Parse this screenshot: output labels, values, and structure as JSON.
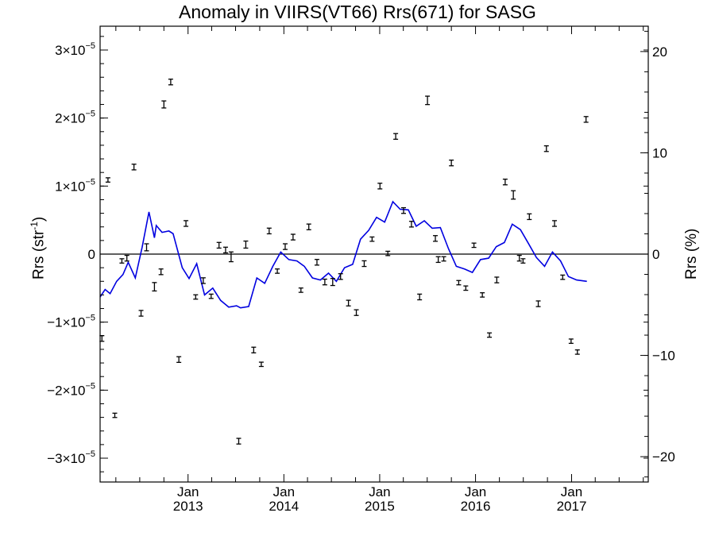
{
  "chart_data": {
    "type": "scatter",
    "title": "Anomaly in VIIRS(VT66) Rrs(671) for SASG",
    "ylabel_left_base": "Rrs (str",
    "ylabel_left_sup": "-1",
    "ylabel_left_end": ")",
    "ylabel_right": "Rrs (%)",
    "x_range": [
      "2012-02-01",
      "2017-10-20"
    ],
    "y_left_range": [
      -3.35e-05,
      3.35e-05
    ],
    "y_right_range": [
      -22.5,
      22.5
    ],
    "y_left_ticks": [
      {
        "value": 3e-05,
        "mantissa": "3",
        "times": "×10",
        "exp": "−5"
      },
      {
        "value": 2e-05,
        "mantissa": "2",
        "times": "×10",
        "exp": "−5"
      },
      {
        "value": 1e-05,
        "mantissa": "1",
        "times": "×10",
        "exp": "−5"
      },
      {
        "value": 0,
        "mantissa": "0",
        "times": "",
        "exp": ""
      },
      {
        "value": -1e-05,
        "mantissa": "−1",
        "times": "×10",
        "exp": "−5"
      },
      {
        "value": -2e-05,
        "mantissa": "−2",
        "times": "×10",
        "exp": "−5"
      },
      {
        "value": -3e-05,
        "mantissa": "−3",
        "times": "×10",
        "exp": "−5"
      }
    ],
    "y_right_ticks": [
      {
        "value": 20,
        "label": "20"
      },
      {
        "value": 10,
        "label": "10"
      },
      {
        "value": 0,
        "label": "0"
      },
      {
        "value": -10,
        "label": "−10"
      },
      {
        "value": -20,
        "label": "−20"
      }
    ],
    "x_ticks": [
      {
        "date": "2013-01-01",
        "month": "Jan",
        "year": "2013"
      },
      {
        "date": "2014-01-01",
        "month": "Jan",
        "year": "2014"
      },
      {
        "date": "2015-01-01",
        "month": "Jan",
        "year": "2015"
      },
      {
        "date": "2016-01-01",
        "month": "Jan",
        "year": "2016"
      },
      {
        "date": "2017-01-01",
        "month": "Jan",
        "year": "2017"
      }
    ],
    "zero_line": 0,
    "series": [
      {
        "kind": "points_with_error_bars",
        "color": "#000000",
        "points": [
          {
            "x": "2012-02-08",
            "y": -1.24e-05,
            "err": 3e-07
          },
          {
            "x": "2012-03-02",
            "y": 1.09e-05,
            "err": 2e-07
          },
          {
            "x": "2012-03-28",
            "y": -2.37e-05,
            "err": 2e-07
          },
          {
            "x": "2012-04-24",
            "y": -1e-06,
            "err": 2e-07
          },
          {
            "x": "2012-05-13",
            "y": -6e-07,
            "err": 3e-07
          },
          {
            "x": "2012-06-09",
            "y": 1.28e-05,
            "err": 3e-07
          },
          {
            "x": "2012-07-06",
            "y": -8.7e-06,
            "err": 3e-07
          },
          {
            "x": "2012-07-27",
            "y": 1e-06,
            "err": 4e-07
          },
          {
            "x": "2012-08-26",
            "y": -4.8e-06,
            "err": 5e-07
          },
          {
            "x": "2012-09-20",
            "y": -2.6e-06,
            "err": 3e-07
          },
          {
            "x": "2012-10-01",
            "y": 2.2e-05,
            "err": 4e-07
          },
          {
            "x": "2012-10-27",
            "y": 2.53e-05,
            "err": 3e-07
          },
          {
            "x": "2012-11-27",
            "y": -1.55e-05,
            "err": 3e-07
          },
          {
            "x": "2012-12-24",
            "y": 4.5e-06,
            "err": 3e-07
          },
          {
            "x": "2013-01-30",
            "y": -6.3e-06,
            "err": 2e-07
          },
          {
            "x": "2013-02-28",
            "y": -3.9e-06,
            "err": 3e-07
          },
          {
            "x": "2013-03-30",
            "y": -6.2e-06,
            "err": 2e-07
          },
          {
            "x": "2013-04-29",
            "y": 1.3e-06,
            "err": 3e-07
          },
          {
            "x": "2013-05-24",
            "y": 6e-07,
            "err": 3e-07
          },
          {
            "x": "2013-06-14",
            "y": -4e-07,
            "err": 6e-07
          },
          {
            "x": "2013-07-13",
            "y": -2.75e-05,
            "err": 3e-07
          },
          {
            "x": "2013-08-09",
            "y": 1.4e-06,
            "err": 4e-07
          },
          {
            "x": "2013-09-08",
            "y": -1.41e-05,
            "err": 3e-07
          },
          {
            "x": "2013-10-07",
            "y": -1.62e-05,
            "err": 2e-07
          },
          {
            "x": "2013-11-06",
            "y": 3.4e-06,
            "err": 3e-07
          },
          {
            "x": "2013-12-07",
            "y": -2.5e-06,
            "err": 2e-07
          },
          {
            "x": "2014-01-06",
            "y": 1.1e-06,
            "err": 3e-07
          },
          {
            "x": "2014-02-05",
            "y": 2.5e-06,
            "err": 3e-07
          },
          {
            "x": "2014-03-07",
            "y": -5.3e-06,
            "err": 2e-07
          },
          {
            "x": "2014-04-06",
            "y": 4e-06,
            "err": 3e-07
          },
          {
            "x": "2014-05-07",
            "y": -1.2e-06,
            "err": 3e-07
          },
          {
            "x": "2014-06-06",
            "y": -4.1e-06,
            "err": 3e-07
          },
          {
            "x": "2014-07-06",
            "y": -4.1e-06,
            "err": 4e-07
          },
          {
            "x": "2014-08-05",
            "y": -3.3e-06,
            "err": 3e-07
          },
          {
            "x": "2014-09-04",
            "y": -7.2e-06,
            "err": 3e-07
          },
          {
            "x": "2014-10-04",
            "y": -8.6e-06,
            "err": 3e-07
          },
          {
            "x": "2014-11-03",
            "y": -1.4e-06,
            "err": 3e-07
          },
          {
            "x": "2014-12-03",
            "y": 2.2e-06,
            "err": 2e-07
          },
          {
            "x": "2015-01-02",
            "y": 1e-05,
            "err": 3e-07
          },
          {
            "x": "2015-02-01",
            "y": 1e-07,
            "err": 2e-07
          },
          {
            "x": "2015-03-03",
            "y": 1.73e-05,
            "err": 3e-07
          },
          {
            "x": "2015-04-02",
            "y": 6.4e-06,
            "err": 3e-07
          },
          {
            "x": "2015-05-02",
            "y": 4.4e-06,
            "err": 3e-07
          },
          {
            "x": "2015-06-02",
            "y": -6.3e-06,
            "err": 3e-07
          },
          {
            "x": "2015-07-02",
            "y": 2.26e-05,
            "err": 5e-07
          },
          {
            "x": "2015-08-01",
            "y": 2.3e-06,
            "err": 3e-07
          },
          {
            "x": "2015-08-12",
            "y": -8e-07,
            "err": 3e-07
          },
          {
            "x": "2015-09-02",
            "y": -7e-07,
            "err": 2e-07
          },
          {
            "x": "2015-10-01",
            "y": 1.34e-05,
            "err": 3e-07
          },
          {
            "x": "2015-10-29",
            "y": -4.2e-06,
            "err": 2e-07
          },
          {
            "x": "2015-11-25",
            "y": -5e-06,
            "err": 2e-07
          },
          {
            "x": "2015-12-26",
            "y": 1.3e-06,
            "err": 2e-07
          },
          {
            "x": "2016-01-27",
            "y": -6e-06,
            "err": 2e-07
          },
          {
            "x": "2016-02-23",
            "y": -1.19e-05,
            "err": 2e-07
          },
          {
            "x": "2016-03-22",
            "y": -3.8e-06,
            "err": 3e-07
          },
          {
            "x": "2016-04-23",
            "y": 1.06e-05,
            "err": 3e-07
          },
          {
            "x": "2016-05-24",
            "y": 8.7e-06,
            "err": 5e-07
          },
          {
            "x": "2016-06-16",
            "y": -6e-07,
            "err": 3e-07
          },
          {
            "x": "2016-06-30",
            "y": -1e-06,
            "err": 2e-07
          },
          {
            "x": "2016-07-24",
            "y": 5.5e-06,
            "err": 3e-07
          },
          {
            "x": "2016-08-27",
            "y": -7.3e-06,
            "err": 3e-07
          },
          {
            "x": "2016-09-27",
            "y": 1.55e-05,
            "err": 3e-07
          },
          {
            "x": "2016-10-28",
            "y": 4.5e-06,
            "err": 3e-07
          },
          {
            "x": "2016-11-28",
            "y": -3.4e-06,
            "err": 2e-07
          },
          {
            "x": "2016-12-30",
            "y": -1.28e-05,
            "err": 2e-07
          },
          {
            "x": "2017-01-23",
            "y": -1.44e-05,
            "err": 2e-07
          },
          {
            "x": "2017-02-25",
            "y": 1.98e-05,
            "err": 3e-07
          }
        ]
      },
      {
        "kind": "line",
        "color": "#0000e0",
        "points": [
          {
            "x": "2012-02-01",
            "y": -6.3e-06
          },
          {
            "x": "2012-02-20",
            "y": -5.2e-06
          },
          {
            "x": "2012-03-10",
            "y": -5.8e-06
          },
          {
            "x": "2012-04-04",
            "y": -4e-06
          },
          {
            "x": "2012-04-28",
            "y": -3e-06
          },
          {
            "x": "2012-05-18",
            "y": -1.2e-06
          },
          {
            "x": "2012-06-14",
            "y": -3.5e-06
          },
          {
            "x": "2012-07-10",
            "y": 1e-06
          },
          {
            "x": "2012-08-05",
            "y": 6.2e-06
          },
          {
            "x": "2012-08-26",
            "y": 2.4e-06
          },
          {
            "x": "2012-09-02",
            "y": 4.2e-06
          },
          {
            "x": "2012-09-24",
            "y": 3.2e-06
          },
          {
            "x": "2012-10-20",
            "y": 3.4e-06
          },
          {
            "x": "2012-11-05",
            "y": 3e-06
          },
          {
            "x": "2012-12-10",
            "y": -2e-06
          },
          {
            "x": "2013-01-05",
            "y": -3.6e-06
          },
          {
            "x": "2013-02-03",
            "y": -1.4e-06
          },
          {
            "x": "2013-03-05",
            "y": -6e-06
          },
          {
            "x": "2013-04-05",
            "y": -5e-06
          },
          {
            "x": "2013-05-05",
            "y": -6.8e-06
          },
          {
            "x": "2013-06-05",
            "y": -7.8e-06
          },
          {
            "x": "2013-07-05",
            "y": -7.6e-06
          },
          {
            "x": "2013-07-20",
            "y": -7.9e-06
          },
          {
            "x": "2013-08-20",
            "y": -7.7e-06
          },
          {
            "x": "2013-09-20",
            "y": -3.5e-06
          },
          {
            "x": "2013-10-20",
            "y": -4.3e-06
          },
          {
            "x": "2013-11-20",
            "y": -1.8e-06
          },
          {
            "x": "2013-12-20",
            "y": 3e-07
          },
          {
            "x": "2014-01-20",
            "y": -8e-07
          },
          {
            "x": "2014-02-20",
            "y": -1e-06
          },
          {
            "x": "2014-03-20",
            "y": -1.8e-06
          },
          {
            "x": "2014-04-20",
            "y": -3.5e-06
          },
          {
            "x": "2014-05-20",
            "y": -3.8e-06
          },
          {
            "x": "2014-06-20",
            "y": -2.8e-06
          },
          {
            "x": "2014-07-20",
            "y": -4e-06
          },
          {
            "x": "2014-08-20",
            "y": -2e-06
          },
          {
            "x": "2014-09-20",
            "y": -1.5e-06
          },
          {
            "x": "2014-10-20",
            "y": 2.2e-06
          },
          {
            "x": "2014-11-20",
            "y": 3.5e-06
          },
          {
            "x": "2014-12-20",
            "y": 5.4e-06
          },
          {
            "x": "2015-01-20",
            "y": 4.7e-06
          },
          {
            "x": "2015-02-20",
            "y": 7.7e-06
          },
          {
            "x": "2015-03-20",
            "y": 6.6e-06
          },
          {
            "x": "2015-04-20",
            "y": 6.5e-06
          },
          {
            "x": "2015-05-20",
            "y": 4.1e-06
          },
          {
            "x": "2015-06-20",
            "y": 4.9e-06
          },
          {
            "x": "2015-07-20",
            "y": 3.8e-06
          },
          {
            "x": "2015-08-20",
            "y": 3.9e-06
          },
          {
            "x": "2015-09-20",
            "y": 8e-07
          },
          {
            "x": "2015-10-20",
            "y": -1.8e-06
          },
          {
            "x": "2015-11-20",
            "y": -2.2e-06
          },
          {
            "x": "2015-12-20",
            "y": -2.7e-06
          },
          {
            "x": "2016-01-20",
            "y": -8e-07
          },
          {
            "x": "2016-02-20",
            "y": -6e-07
          },
          {
            "x": "2016-03-20",
            "y": 1.1e-06
          },
          {
            "x": "2016-04-20",
            "y": 1.7e-06
          },
          {
            "x": "2016-05-20",
            "y": 4.4e-06
          },
          {
            "x": "2016-06-20",
            "y": 3.6e-06
          },
          {
            "x": "2016-07-20",
            "y": 1.6e-06
          },
          {
            "x": "2016-08-20",
            "y": -5e-07
          },
          {
            "x": "2016-09-20",
            "y": -1.8e-06
          },
          {
            "x": "2016-10-20",
            "y": 3e-07
          },
          {
            "x": "2016-11-20",
            "y": -1e-06
          },
          {
            "x": "2016-12-20",
            "y": -3.3e-06
          },
          {
            "x": "2017-01-20",
            "y": -3.8e-06
          },
          {
            "x": "2017-02-28",
            "y": -4e-06
          }
        ]
      }
    ]
  }
}
